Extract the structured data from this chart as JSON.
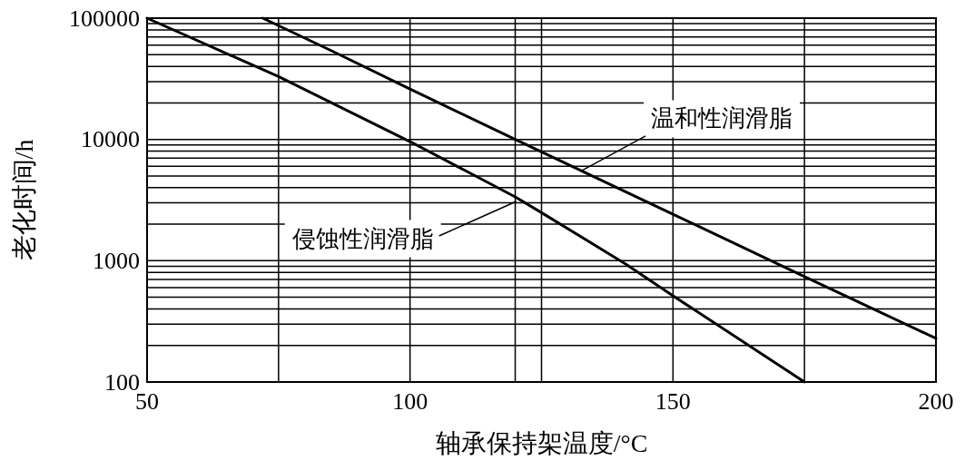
{
  "chart_data": {
    "type": "line",
    "xlabel": "轴承保持架温度/°C",
    "ylabel": "老化时间/h",
    "log": "y",
    "xlim": [
      50,
      200
    ],
    "xticks": [
      50,
      100,
      150,
      200
    ],
    "ylim": [
      100,
      100000
    ],
    "yticks": [
      100,
      1000,
      10000,
      100000
    ],
    "grid": "y",
    "series": [
      {
        "color": "#000000",
        "x": [
          72,
          85,
          100,
          120,
          150,
          175,
          200
        ],
        "values": [
          100000,
          54000,
          26000,
          10000,
          2420,
          740,
          229
        ]
      },
      {
        "color": "#000000",
        "x": [
          50,
          75,
          100,
          120,
          125,
          141,
          150,
          175
        ],
        "values": [
          100000,
          33000,
          9600,
          3360,
          2490,
          940,
          514,
          100
        ]
      }
    ],
    "ref_lines": [
      {
        "axis": "x",
        "value": 75,
        "color": "#000000"
      },
      {
        "axis": "x",
        "value": 100,
        "color": "#000000"
      },
      {
        "axis": "x",
        "value": 120,
        "color": "#000000"
      },
      {
        "axis": "x",
        "value": 125,
        "color": "#000000"
      },
      {
        "axis": "x",
        "value": 150,
        "color": "#000000"
      },
      {
        "axis": "x",
        "value": 175,
        "color": "#000000"
      }
    ],
    "annotations": [
      {
        "text": "温和性润滑脂",
        "x": 132.7,
        "y": 5540
      },
      {
        "text": "侵蚀性润滑脂",
        "x": 120.2,
        "y": 3080
      }
    ]
  }
}
